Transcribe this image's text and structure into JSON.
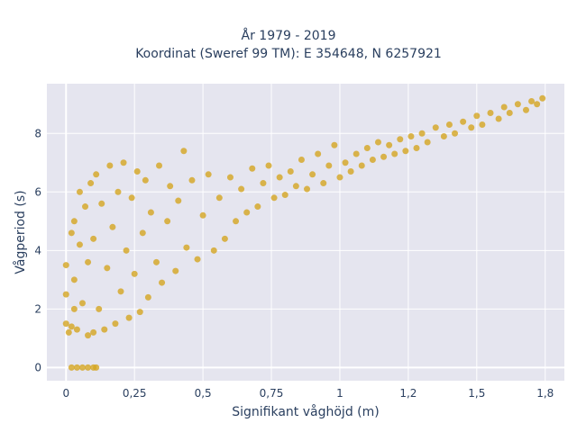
{
  "chart_data": {
    "type": "scatter",
    "title": "År 1979 - 2019",
    "subtitle": "Koordinat (Sweref 99 TM): E 354648, N 6257921",
    "xlabel": "Signifikant våghöjd (m)",
    "ylabel": "Vågperiod (s)",
    "xlim": [
      -0.07,
      1.82
    ],
    "ylim": [
      -0.45,
      9.7
    ],
    "x_ticks": [
      {
        "value": 0,
        "label": "0"
      },
      {
        "value": 0.25,
        "label": "0,25"
      },
      {
        "value": 0.5,
        "label": "0,5"
      },
      {
        "value": 0.75,
        "label": "0,75"
      },
      {
        "value": 1,
        "label": "1"
      },
      {
        "value": 1.25,
        "label": "1,2"
      },
      {
        "value": 1.5,
        "label": "1,5"
      },
      {
        "value": 1.75,
        "label": "1,8"
      }
    ],
    "y_ticks": [
      {
        "value": 0,
        "label": "0"
      },
      {
        "value": 2,
        "label": "2"
      },
      {
        "value": 4,
        "label": "4"
      },
      {
        "value": 6,
        "label": "6"
      },
      {
        "value": 8,
        "label": "8"
      }
    ],
    "grid": true,
    "legend": "none",
    "colors": {
      "marker": "#d4a520",
      "plot_background": "#e5e5ef",
      "grid": "#ffffff"
    },
    "series": [
      {
        "points": [
          [
            0.02,
            0.0
          ],
          [
            0.04,
            0.0
          ],
          [
            0.06,
            0.0
          ],
          [
            0.08,
            0.0
          ],
          [
            0.1,
            0.0
          ],
          [
            0.11,
            0.0
          ],
          [
            0.0,
            1.5
          ],
          [
            0.0,
            2.5
          ],
          [
            0.0,
            3.5
          ],
          [
            0.01,
            1.2
          ],
          [
            0.02,
            1.4
          ],
          [
            0.02,
            4.6
          ],
          [
            0.03,
            2.0
          ],
          [
            0.03,
            3.0
          ],
          [
            0.03,
            5.0
          ],
          [
            0.04,
            1.3
          ],
          [
            0.05,
            4.2
          ],
          [
            0.05,
            6.0
          ],
          [
            0.06,
            2.2
          ],
          [
            0.07,
            5.5
          ],
          [
            0.08,
            1.1
          ],
          [
            0.08,
            3.6
          ],
          [
            0.09,
            6.3
          ],
          [
            0.1,
            1.2
          ],
          [
            0.1,
            4.4
          ],
          [
            0.11,
            6.6
          ],
          [
            0.12,
            2.0
          ],
          [
            0.13,
            5.6
          ],
          [
            0.14,
            1.3
          ],
          [
            0.15,
            3.4
          ],
          [
            0.16,
            6.9
          ],
          [
            0.17,
            4.8
          ],
          [
            0.18,
            1.5
          ],
          [
            0.19,
            6.0
          ],
          [
            0.2,
            2.6
          ],
          [
            0.21,
            7.0
          ],
          [
            0.22,
            4.0
          ],
          [
            0.23,
            1.7
          ],
          [
            0.24,
            5.8
          ],
          [
            0.25,
            3.2
          ],
          [
            0.26,
            6.7
          ],
          [
            0.27,
            1.9
          ],
          [
            0.28,
            4.6
          ],
          [
            0.29,
            6.4
          ],
          [
            0.3,
            2.4
          ],
          [
            0.31,
            5.3
          ],
          [
            0.33,
            3.6
          ],
          [
            0.34,
            6.9
          ],
          [
            0.35,
            2.9
          ],
          [
            0.37,
            5.0
          ],
          [
            0.38,
            6.2
          ],
          [
            0.4,
            3.3
          ],
          [
            0.41,
            5.7
          ],
          [
            0.43,
            7.4
          ],
          [
            0.44,
            4.1
          ],
          [
            0.46,
            6.4
          ],
          [
            0.48,
            3.7
          ],
          [
            0.5,
            5.2
          ],
          [
            0.52,
            6.6
          ],
          [
            0.54,
            4.0
          ],
          [
            0.56,
            5.8
          ],
          [
            0.58,
            4.4
          ],
          [
            0.6,
            6.5
          ],
          [
            0.62,
            5.0
          ],
          [
            0.64,
            6.1
          ],
          [
            0.66,
            5.3
          ],
          [
            0.68,
            6.8
          ],
          [
            0.7,
            5.5
          ],
          [
            0.72,
            6.3
          ],
          [
            0.74,
            6.9
          ],
          [
            0.76,
            5.8
          ],
          [
            0.78,
            6.5
          ],
          [
            0.8,
            5.9
          ],
          [
            0.82,
            6.7
          ],
          [
            0.84,
            6.2
          ],
          [
            0.86,
            7.1
          ],
          [
            0.88,
            6.1
          ],
          [
            0.9,
            6.6
          ],
          [
            0.92,
            7.3
          ],
          [
            0.94,
            6.3
          ],
          [
            0.96,
            6.9
          ],
          [
            0.98,
            7.6
          ],
          [
            1.0,
            6.5
          ],
          [
            1.02,
            7.0
          ],
          [
            1.04,
            6.7
          ],
          [
            1.06,
            7.3
          ],
          [
            1.08,
            6.9
          ],
          [
            1.1,
            7.5
          ],
          [
            1.12,
            7.1
          ],
          [
            1.14,
            7.7
          ],
          [
            1.16,
            7.2
          ],
          [
            1.18,
            7.6
          ],
          [
            1.2,
            7.3
          ],
          [
            1.22,
            7.8
          ],
          [
            1.24,
            7.4
          ],
          [
            1.26,
            7.9
          ],
          [
            1.28,
            7.5
          ],
          [
            1.3,
            8.0
          ],
          [
            1.32,
            7.7
          ],
          [
            1.35,
            8.2
          ],
          [
            1.38,
            7.9
          ],
          [
            1.4,
            8.3
          ],
          [
            1.42,
            8.0
          ],
          [
            1.45,
            8.4
          ],
          [
            1.48,
            8.2
          ],
          [
            1.5,
            8.6
          ],
          [
            1.52,
            8.3
          ],
          [
            1.55,
            8.7
          ],
          [
            1.58,
            8.5
          ],
          [
            1.6,
            8.9
          ],
          [
            1.62,
            8.7
          ],
          [
            1.65,
            9.0
          ],
          [
            1.68,
            8.8
          ],
          [
            1.7,
            9.1
          ],
          [
            1.72,
            9.0
          ],
          [
            1.74,
            9.2
          ]
        ]
      }
    ]
  }
}
